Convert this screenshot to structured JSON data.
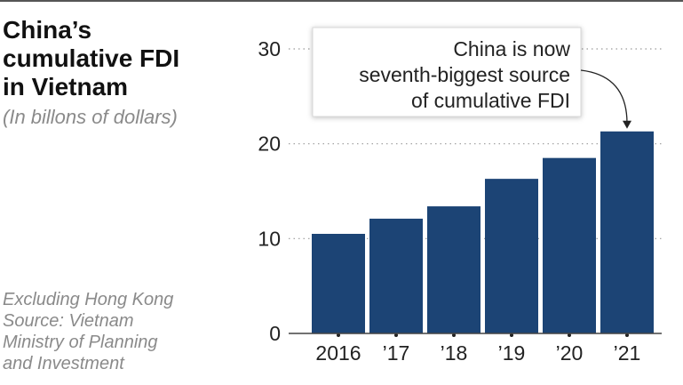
{
  "chart_data": {
    "type": "bar",
    "title": "China’s\ncumulative FDI\nin Vietnam",
    "subtitle": "(In billons of dollars)",
    "categories": [
      "2016",
      "’17",
      "’18",
      "’19",
      "’20",
      "’21"
    ],
    "values": [
      10.5,
      12.1,
      13.4,
      16.3,
      18.5,
      21.3
    ],
    "xlabel": "",
    "ylabel": "",
    "ylim": [
      0,
      30
    ],
    "yticks": [
      "0",
      "10",
      "20",
      "30"
    ],
    "grid": "horizontal dotted",
    "annotation": {
      "lines": [
        "China is now",
        "seventh-biggest source",
        "of cumulative FDI"
      ],
      "target_category": "’21"
    },
    "notes": [
      "Excluding Hong Kong",
      "Source: Vietnam\nMinistry of Planning\nand Investment"
    ]
  },
  "colors": {
    "bar": "#1c4475",
    "grid": "#9a9a9a",
    "axis": "#444444",
    "muted_text": "#8a8a8a"
  }
}
